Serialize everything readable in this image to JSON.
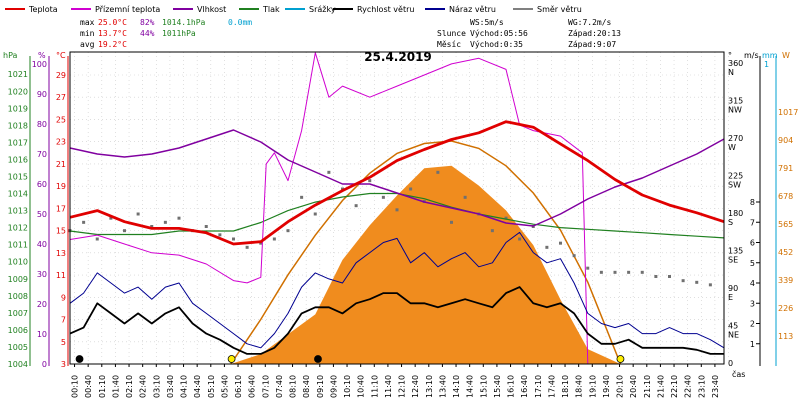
{
  "chart_data": {
    "type": "line",
    "title": "25.4.2019",
    "legend": [
      {
        "name": "Teplota",
        "color": "#e00000"
      },
      {
        "name": "Přízemní teplota",
        "color": "#d000d0"
      },
      {
        "name": "Vlhkost",
        "color": "#8000a0"
      },
      {
        "name": "Tlak",
        "color": "#208020"
      },
      {
        "name": "Srážky",
        "color": "#00a0d0"
      },
      {
        "name": "Rychlost větru",
        "color": "#000000"
      },
      {
        "name": "Náraz větru",
        "color": "#000090"
      },
      {
        "name": "Směr větru",
        "color": "#808080"
      }
    ],
    "stats": {
      "max_label": "max",
      "max_temp": "25.0°C",
      "max_hum": "82%",
      "max_press": "1014.1hPa",
      "rain": "0.0mm",
      "min_label": "min",
      "min_temp": "13.7°C",
      "min_hum": "44%",
      "min_press": "1011hPa",
      "avg_label": "avg",
      "avg_temp": "19.2°C",
      "ws": "WS:5m/s",
      "wg": "WG:7.2m/s",
      "sun_label": "Slunce",
      "sunrise": "Východ:05:56",
      "sunset": "Západ:20:13",
      "moon_label": "Měsíc",
      "moonrise": "Východ:0:35",
      "moonset": "Západ:9:07"
    },
    "axes": {
      "hpa": {
        "unit": "hPa",
        "color": "#208020",
        "ticks": [
          "1021",
          "1020",
          "1019",
          "1018",
          "1017",
          "1016",
          "1015",
          "1014",
          "1013",
          "1012",
          "1011",
          "1010",
          "1009",
          "1008",
          "1007",
          "1006",
          "1005",
          "1004"
        ]
      },
      "humidity": {
        "unit": "%",
        "color": "#8000a0",
        "ticks": [
          "100",
          "90",
          "80",
          "70",
          "60",
          "50",
          "40",
          "30",
          "20",
          "10",
          "0"
        ]
      },
      "temp": {
        "unit": "°C",
        "color": "#e00000",
        "ticks": [
          "29",
          "27",
          "25",
          "23",
          "21",
          "19",
          "17",
          "15",
          "13",
          "11",
          "9",
          "7",
          "5",
          "3"
        ]
      },
      "dir": {
        "unit": "°",
        "ticks": [
          {
            "deg": "360",
            "name": "N"
          },
          {
            "deg": "315",
            "name": "NW"
          },
          {
            "deg": "270",
            "name": "W"
          },
          {
            "deg": "225",
            "name": "SW"
          },
          {
            "deg": "180",
            "name": "S"
          },
          {
            "deg": "135",
            "name": "SE"
          },
          {
            "deg": "90",
            "name": "E"
          },
          {
            "deg": "45",
            "name": "NE"
          },
          {
            "deg": "0",
            "name": ""
          }
        ]
      },
      "wind": {
        "unit": "m/s",
        "ticks": [
          "8",
          "7",
          "6",
          "5",
          "4",
          "3",
          "2",
          "1"
        ]
      },
      "rain": {
        "unit": "mm",
        "color": "#00a0d0",
        "ticks": [
          "1"
        ]
      },
      "solar": {
        "unit": "W",
        "color": "#d07000",
        "ticks": [
          "1017",
          "904",
          "791",
          "678",
          "565",
          "452",
          "339",
          "226",
          "113"
        ]
      },
      "x": {
        "unit": "čas",
        "ticks": [
          "00:10",
          "00:40",
          "01:10",
          "01:40",
          "02:10",
          "02:40",
          "03:10",
          "03:40",
          "04:10",
          "04:40",
          "05:10",
          "05:40",
          "06:10",
          "06:40",
          "07:10",
          "07:40",
          "08:10",
          "08:40",
          "09:10",
          "09:40",
          "10:10",
          "10:40",
          "11:10",
          "11:40",
          "12:10",
          "12:40",
          "13:10",
          "13:40",
          "14:10",
          "14:40",
          "15:10",
          "15:40",
          "16:10",
          "16:40",
          "17:10",
          "17:40",
          "18:10",
          "18:40",
          "19:10",
          "19:40",
          "20:10",
          "20:40",
          "21:10",
          "21:40",
          "22:10",
          "22:40",
          "23:10",
          "23:40"
        ]
      }
    },
    "series": {
      "temperature": {
        "name": "Teplota",
        "x_hours": [
          0,
          1,
          2,
          3,
          4,
          5,
          6,
          7,
          8,
          9,
          10,
          11,
          12,
          13,
          14,
          15,
          16,
          17,
          18,
          19,
          20,
          21,
          22,
          23,
          24
        ],
        "values": [
          16.2,
          16.8,
          15.8,
          15.2,
          15.2,
          14.8,
          13.8,
          14.0,
          15.8,
          17.3,
          18.6,
          19.8,
          21.3,
          22.3,
          23.2,
          23.8,
          24.8,
          24.3,
          22.8,
          21.3,
          19.6,
          18.2,
          17.3,
          16.6,
          15.8
        ]
      },
      "ground_temperature": {
        "name": "Přízemní teplota",
        "x_hours": [
          0,
          1,
          2,
          3,
          4,
          5,
          6,
          6.5,
          7,
          7.2,
          7.5,
          8,
          8.5,
          9,
          9.5,
          10,
          11,
          12,
          13,
          14,
          15,
          16,
          16.5,
          17,
          18,
          18.8,
          19,
          20,
          21,
          22,
          23,
          24
        ],
        "values": [
          14.2,
          14.6,
          13.8,
          13.0,
          12.8,
          12.0,
          10.5,
          10.3,
          10.8,
          21.0,
          22.0,
          19.5,
          24.0,
          31.0,
          27.0,
          28.0,
          27.0,
          28.0,
          29.0,
          30.0,
          30.5,
          29.5,
          24.5,
          24.0,
          23.5,
          22.0,
          3.0,
          3.0,
          3.0,
          3.0,
          3.0,
          3.0
        ]
      },
      "humidity": {
        "name": "Vlhkost",
        "x_hours": [
          0,
          1,
          2,
          3,
          4,
          5,
          6,
          7,
          8,
          9,
          10,
          11,
          12,
          13,
          14,
          15,
          16,
          17,
          18,
          19,
          20,
          21,
          22,
          23,
          24
        ],
        "values": [
          72,
          70,
          69,
          70,
          72,
          75,
          78,
          74,
          68,
          64,
          60,
          60,
          57,
          54,
          52,
          50,
          47,
          46,
          50,
          55,
          59,
          62,
          66,
          70,
          75
        ]
      },
      "pressure": {
        "name": "Tlak",
        "x_hours": [
          0,
          1,
          2,
          3,
          4,
          5,
          6,
          7,
          8,
          9,
          10,
          11,
          12,
          13,
          14,
          15,
          16,
          17,
          18,
          19,
          20,
          21,
          22,
          23,
          24
        ],
        "values": [
          1011.8,
          1011.6,
          1011.6,
          1011.6,
          1011.8,
          1011.8,
          1011.8,
          1012.3,
          1013.0,
          1013.5,
          1013.8,
          1014.0,
          1014.0,
          1013.7,
          1013.2,
          1012.8,
          1012.5,
          1012.2,
          1012.0,
          1011.9,
          1011.8,
          1011.7,
          1011.6,
          1011.5,
          1011.4
        ]
      },
      "wind_speed": {
        "name": "Rychlost větru",
        "x_hours": [
          0,
          0.5,
          1,
          1.5,
          2,
          2.5,
          3,
          3.5,
          4,
          4.5,
          5,
          5.5,
          6,
          6.5,
          7,
          7.5,
          8,
          8.5,
          9,
          9.5,
          10,
          10.5,
          11,
          11.5,
          12,
          12.5,
          13,
          13.5,
          14,
          14.5,
          15,
          15.5,
          16,
          16.5,
          17,
          17.5,
          18,
          18.5,
          19,
          19.5,
          20,
          20.5,
          21,
          21.5,
          22,
          22.5,
          23,
          23.5,
          24
        ],
        "values": [
          1.5,
          1.8,
          3.0,
          2.5,
          2.0,
          2.5,
          2.0,
          2.5,
          2.8,
          2.0,
          1.5,
          1.2,
          0.8,
          0.5,
          0.5,
          0.8,
          1.5,
          2.5,
          2.8,
          2.8,
          2.5,
          3.0,
          3.2,
          3.5,
          3.5,
          3.0,
          3.0,
          2.8,
          3.0,
          3.2,
          3.0,
          2.8,
          3.5,
          3.8,
          3.0,
          2.8,
          3.0,
          2.5,
          1.5,
          1.0,
          1.0,
          1.2,
          0.8,
          0.8,
          0.8,
          0.8,
          0.7,
          0.5,
          0.5
        ]
      },
      "wind_gust": {
        "name": "Náraz větru",
        "x_hours": [
          0,
          0.5,
          1,
          1.5,
          2,
          2.5,
          3,
          3.5,
          4,
          4.5,
          5,
          5.5,
          6,
          6.5,
          7,
          7.5,
          8,
          8.5,
          9,
          9.5,
          10,
          10.5,
          11,
          11.5,
          12,
          12.5,
          13,
          13.5,
          14,
          14.5,
          15,
          15.5,
          16,
          16.5,
          17,
          17.5,
          18,
          18.5,
          19,
          19.5,
          20,
          20.5,
          21,
          21.5,
          22,
          22.5,
          23,
          23.5,
          24
        ],
        "values": [
          3.0,
          3.5,
          4.5,
          4.0,
          3.5,
          3.8,
          3.2,
          3.8,
          4.0,
          3.0,
          2.5,
          2.0,
          1.5,
          1.0,
          0.8,
          1.5,
          2.5,
          3.8,
          4.5,
          4.2,
          4.0,
          5.0,
          5.5,
          6.0,
          6.2,
          5.0,
          5.5,
          4.8,
          5.2,
          5.5,
          4.8,
          5.0,
          6.0,
          6.5,
          5.5,
          5.0,
          5.2,
          4.0,
          2.5,
          2.0,
          1.8,
          2.0,
          1.5,
          1.5,
          1.8,
          1.5,
          1.5,
          1.2,
          0.8
        ]
      },
      "solar": {
        "name": "",
        "x_hours": [
          5.9,
          7,
          8,
          9,
          10,
          11,
          12,
          13,
          14,
          15,
          16,
          17,
          18,
          19,
          20.2
        ],
        "values": [
          0,
          40,
          120,
          200,
          420,
          560,
          680,
          790,
          800,
          720,
          620,
          480,
          260,
          60,
          0
        ]
      },
      "solar_theoretical": {
        "name": "",
        "x_hours": [
          5.9,
          7,
          8,
          9,
          10,
          11,
          12,
          13,
          14,
          15,
          16,
          17,
          18,
          19,
          20.2
        ],
        "values": [
          0,
          180,
          360,
          520,
          660,
          770,
          850,
          890,
          900,
          870,
          800,
          690,
          540,
          330,
          0
        ]
      },
      "wind_direction": {
        "name": "Směr větru",
        "x_hours": [
          0,
          0.5,
          1,
          1.5,
          2,
          2.5,
          3,
          3.5,
          4,
          4.5,
          5,
          5.5,
          6,
          6.5,
          7,
          7.5,
          8,
          8.5,
          9,
          9.5,
          10,
          10.5,
          11,
          11.5,
          12,
          12.5,
          13,
          13.5,
          14,
          14.5,
          15,
          15.5,
          16,
          16.5,
          17,
          17.5,
          18,
          18.5,
          19,
          19.5,
          20,
          20.5,
          21,
          21.5,
          22,
          22.5,
          23,
          23.5
        ],
        "values": [
          160,
          170,
          150,
          175,
          160,
          180,
          165,
          170,
          175,
          160,
          165,
          155,
          150,
          140,
          145,
          150,
          160,
          200,
          180,
          230,
          210,
          190,
          220,
          200,
          185,
          210,
          195,
          230,
          170,
          200,
          180,
          160,
          175,
          150,
          165,
          140,
          145,
          130,
          115,
          110,
          110,
          110,
          110,
          105,
          105,
          100,
          98,
          95
        ]
      }
    }
  }
}
